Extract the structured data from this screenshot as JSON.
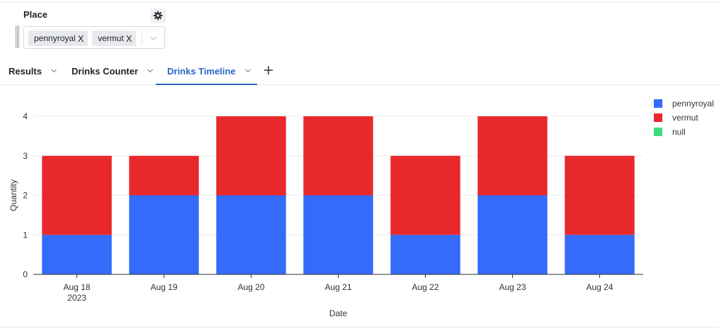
{
  "filter": {
    "label": "Place",
    "chips": [
      {
        "label": "pennyroyal",
        "remove_glyph": "X"
      },
      {
        "label": "vermut",
        "remove_glyph": "X"
      }
    ],
    "settings_icon": "gear-icon",
    "dropdown_icon": "chevron-down-icon"
  },
  "tabs": [
    {
      "label": "Results",
      "active": false
    },
    {
      "label": "Drinks Counter",
      "active": false
    },
    {
      "label": "Drinks Timeline",
      "active": true
    }
  ],
  "add_tab_icon": "plus-icon",
  "colors": {
    "accent": "#2b67c6",
    "pennyroyal": "#356bfb",
    "vermut": "#e8292c",
    "null": "#3fdb7a"
  },
  "chart_data": {
    "type": "bar",
    "stacked": true,
    "categories": [
      "Aug 18",
      "Aug 19",
      "Aug 20",
      "Aug 21",
      "Aug 22",
      "Aug 23",
      "Aug 24"
    ],
    "category_sublabels": [
      "2023",
      "",
      "",
      "",
      "",
      "",
      ""
    ],
    "series": [
      {
        "name": "pennyroyal",
        "color": "#356bfb",
        "values": [
          1,
          2,
          2,
          2,
          1,
          2,
          1
        ]
      },
      {
        "name": "vermut",
        "color": "#e8292c",
        "values": [
          2,
          1,
          2,
          2,
          2,
          2,
          2
        ]
      },
      {
        "name": "null",
        "color": "#3fdb7a",
        "values": [
          0,
          0,
          0,
          0,
          0,
          0,
          0
        ]
      }
    ],
    "xlabel": "Date",
    "ylabel": "Quantity",
    "ylim": [
      0,
      4
    ],
    "yticks": [
      0,
      1,
      2,
      3,
      4
    ],
    "grid": true,
    "legend": "top-right"
  }
}
